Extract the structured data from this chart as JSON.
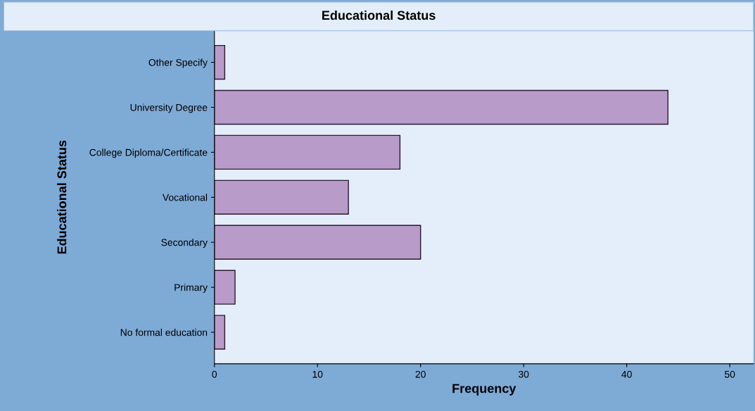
{
  "chart_data": {
    "type": "bar",
    "orientation": "horizontal",
    "title": "Educational Status",
    "xlabel": "Frequency",
    "ylabel": "Educational Status",
    "categories": [
      "Other Specify",
      "University Degree",
      "College Diploma/Certificate",
      "Vocational",
      "Secondary",
      "Primary",
      "No formal education"
    ],
    "values": [
      1,
      44,
      18,
      13,
      20,
      2,
      1
    ],
    "color": "#b99bc9",
    "xlim": [
      0,
      52.3
    ],
    "xticks": [
      0,
      10,
      20,
      30,
      40,
      50
    ],
    "grid": false,
    "legend": false
  }
}
